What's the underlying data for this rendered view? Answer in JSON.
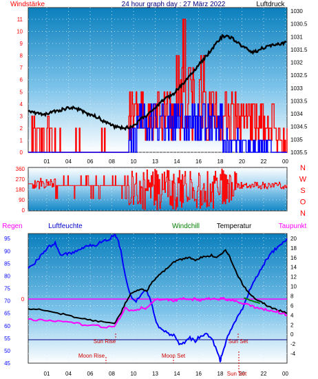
{
  "header": {
    "left_label": "Windstärke",
    "title": "24 hour graph day : 27 März 2022",
    "right_label": "Luftdruck"
  },
  "bottom_header": {
    "regen": "Regen",
    "luftfeuchte": "Luftfeuchte",
    "windchill": "Windchill",
    "temperatur": "Temperatur",
    "taupunkt": "Taupunkt"
  },
  "colors": {
    "wind_gust": "#ff0000",
    "wind_avg": "#0000ff",
    "pressure": "#000000",
    "direction": "#ff0000",
    "humidity": "#0000ff",
    "temperature": "#000000",
    "dewpoint": "#ff00ff",
    "windchill": "#008000",
    "rain_line": "#ff00ff",
    "zero_line": "#000080",
    "left_axis": "#ff0000",
    "right_axis": "#000000",
    "humidity_axis": "#0000ff",
    "bg_top": "#0a7fbd",
    "bg_bottom": "#ffffff"
  },
  "chart_data": [
    {
      "type": "line",
      "name": "wind-pressure",
      "title": "24 hour graph day : 27 März 2022",
      "x_ticks": [
        "01",
        "04",
        "06",
        "08",
        "10",
        "13",
        "14",
        "16",
        "18",
        "20",
        "22",
        "00"
      ],
      "xlim": [
        0,
        24
      ],
      "y_left": {
        "label": "Windstärke",
        "lim": [
          0,
          11
        ],
        "ticks": [
          "0",
          "1",
          "2",
          "3",
          "4",
          "5",
          "6",
          "7",
          "8",
          "9",
          "10",
          "11"
        ]
      },
      "y_right": {
        "label": "Luftdruck",
        "lim": [
          1030,
          1035.5
        ],
        "ticks": [
          "1030",
          "1030.5",
          "1031",
          "1031.5",
          "1032",
          "1032.5",
          "1033",
          "1033.5",
          "1034",
          "1034.5",
          "1035",
          "1035.5"
        ]
      },
      "pressure": {
        "x": [
          0,
          0.5,
          1,
          1.5,
          2,
          2.5,
          3,
          3.5,
          4,
          4.5,
          5,
          5.5,
          6,
          6.5,
          7,
          7.5,
          8,
          8.5,
          9,
          9.5,
          10,
          10.5,
          11,
          11.5,
          12,
          12.5,
          13,
          13.5,
          14,
          14.5,
          15,
          15.5,
          16,
          16.5,
          17,
          17.5,
          18,
          18.5,
          19,
          19.5,
          20,
          20.5,
          21,
          21.5,
          22,
          22.5,
          23,
          23.5,
          24
        ],
        "y": [
          1033.9,
          1033.95,
          1034,
          1034.05,
          1033.95,
          1033.9,
          1033.85,
          1033.8,
          1033.75,
          1033.8,
          1033.9,
          1034,
          1034.05,
          1034.15,
          1034.3,
          1034.4,
          1034.5,
          1034.55,
          1034.55,
          1034.5,
          1034.4,
          1034.2,
          1034.05,
          1033.85,
          1033.65,
          1033.5,
          1033.35,
          1033.2,
          1033,
          1032.75,
          1032.5,
          1032.25,
          1032,
          1031.75,
          1031.5,
          1031.2,
          1031,
          1030.95,
          1031.1,
          1031.25,
          1031.4,
          1031.55,
          1031.6,
          1031.5,
          1031.4,
          1031.35,
          1031.3,
          1031.25,
          1031.2
        ]
      }
    },
    {
      "type": "scatter",
      "name": "wind-direction",
      "xlim": [
        0,
        24
      ],
      "y_left": {
        "lim": [
          0,
          360
        ],
        "ticks": [
          "0",
          "90",
          "180",
          "270",
          "360"
        ]
      },
      "y_right_labels": [
        "N",
        "W",
        "S",
        "O",
        "N"
      ]
    },
    {
      "type": "line",
      "name": "temperature-humidity",
      "x_ticks": [
        "01",
        "04",
        "06",
        "08",
        "10",
        "13",
        "14",
        "16",
        "18",
        "20",
        "22",
        "00"
      ],
      "xlim": [
        0,
        24
      ],
      "y_left": {
        "lim": [
          45,
          97
        ],
        "ticks": [
          "45",
          "50",
          "55",
          "60",
          "65",
          "70",
          "75",
          "80",
          "85",
          "90",
          "95"
        ]
      },
      "y_right": {
        "lim": [
          -6,
          21
        ],
        "ticks": [
          "-4",
          "-2",
          "0",
          "2",
          "4",
          "6",
          "8",
          "10",
          "12",
          "14",
          "16",
          "18",
          "20"
        ]
      },
      "rain_label": "0",
      "events": [
        "Sun Rise",
        "Sun Set",
        "Moon Rise",
        "Moon Set",
        "Sun Set"
      ],
      "humidity": {
        "x": [
          0,
          0.5,
          1,
          1.5,
          2,
          2.5,
          3,
          3.5,
          4,
          4.5,
          5,
          5.5,
          6,
          6.5,
          7,
          7.5,
          8,
          8.3,
          8.6,
          9,
          9.5,
          10,
          10.5,
          11,
          11.5,
          12,
          12.5,
          13,
          13.5,
          14,
          14.5,
          15,
          15.5,
          16,
          16.5,
          17,
          17.5,
          17.8,
          18,
          18.5,
          19,
          19.5,
          20,
          20.5,
          21,
          21.5,
          22,
          22.5,
          23,
          23.5,
          24
        ],
        "y": [
          83,
          85,
          87,
          90,
          92,
          93,
          88,
          89,
          89,
          90,
          91,
          92,
          92,
          93,
          94,
          95,
          96.5,
          95,
          90,
          80,
          72,
          70,
          73,
          74,
          68,
          60,
          58,
          57,
          56,
          53,
          53,
          55,
          54,
          56,
          57,
          55,
          50,
          46,
          49,
          56,
          60,
          64,
          68,
          74,
          78,
          82,
          86,
          89,
          91,
          93,
          95
        ]
      },
      "temperature": {
        "x": [
          0,
          1,
          2,
          3,
          4,
          5,
          6,
          7,
          8,
          8.5,
          9,
          9.5,
          10,
          10.5,
          11,
          11.5,
          12,
          12.5,
          13,
          13.5,
          14,
          14.5,
          15,
          15.5,
          16,
          16.5,
          17,
          17.5,
          18,
          18.3,
          18.6,
          19,
          19.5,
          20,
          20.5,
          21,
          21.5,
          22,
          22.5,
          23,
          23.5,
          24
        ],
        "y": [
          5.3,
          5.2,
          4.8,
          4.3,
          3.8,
          3.3,
          2.9,
          2.6,
          2.3,
          4,
          6.5,
          8.5,
          9,
          9.5,
          9,
          11,
          12,
          13,
          14,
          15,
          15.5,
          15.8,
          16,
          15.5,
          16,
          16.2,
          16.5,
          16,
          17,
          17.5,
          16.5,
          14.5,
          12,
          10,
          8.5,
          7.5,
          7,
          6.2,
          5.6,
          5.2,
          4.8,
          4.4
        ]
      },
      "dewpoint": {
        "x": [
          0,
          1,
          2,
          3,
          4,
          5,
          6,
          7,
          8,
          8.5,
          9,
          9.5,
          10,
          10.5,
          11,
          11.5,
          12,
          12.5,
          13,
          13.5,
          14,
          14.5,
          15,
          15.5,
          16,
          16.5,
          17,
          17.5,
          18,
          18.5,
          19,
          19.5,
          20,
          20.5,
          21,
          21.5,
          22,
          22.5,
          23,
          23.5,
          24
        ],
        "y": [
          3,
          3.1,
          2.9,
          2.6,
          2.4,
          2.1,
          1.8,
          1.6,
          1.5,
          3.5,
          5.5,
          5,
          5,
          5.5,
          5.5,
          6.5,
          7.5,
          7,
          7.2,
          7,
          7.3,
          7.5,
          7.2,
          7.4,
          7.1,
          7.3,
          7.5,
          7.2,
          7.7,
          7.2,
          7,
          6.8,
          6.4,
          6,
          5.6,
          5.4,
          5.2,
          5,
          4.8,
          4.4,
          4
        ]
      },
      "windchill": {
        "x": [
          20,
          20.5,
          21,
          21.5
        ],
        "y": [
          7.5,
          7.2,
          6.8,
          6.5
        ]
      }
    }
  ]
}
